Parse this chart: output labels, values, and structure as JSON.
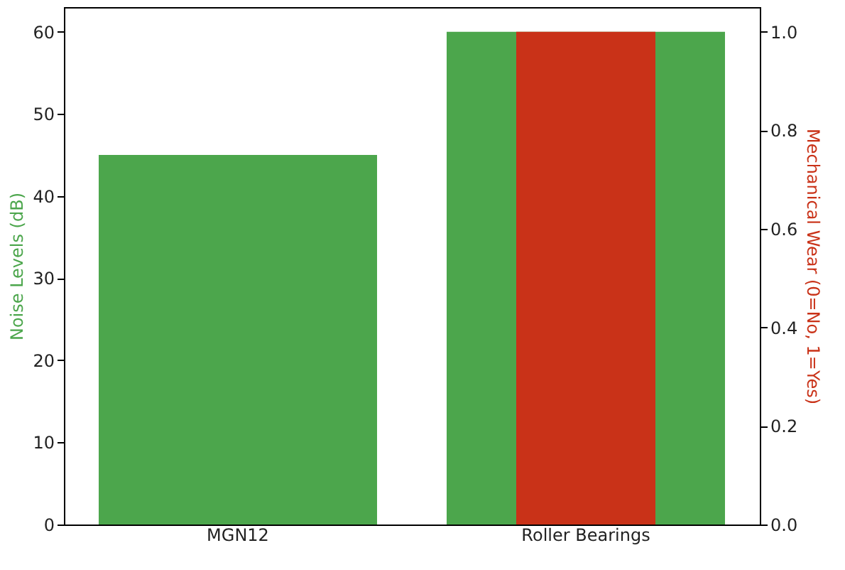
{
  "chart_data": {
    "type": "bar",
    "categories": [
      "MGN12",
      "Roller Bearings"
    ],
    "ylabel": "Noise Levels (dB)",
    "y2label": "Mechanical Wear (0=No, 1=Yes)",
    "series": [
      {
        "color": "#4ca64c",
        "values": [
          45,
          60
        ]
      },
      {
        "color": "#c93218",
        "values": [
          0,
          1
        ],
        "axis": "y2",
        "type": "bar"
      }
    ],
    "ylim": [
      0,
      63
    ],
    "yticks": [
      0,
      10,
      20,
      30,
      40,
      50,
      60
    ],
    "y2lim": [
      0,
      1.05
    ],
    "y2ticks": [
      {
        "value": 0,
        "label": "0.0"
      },
      {
        "value": 0.2,
        "label": "0.2"
      },
      {
        "value": 0.4,
        "label": "0.4"
      },
      {
        "value": 0.6,
        "label": "0.6"
      },
      {
        "value": 0.8,
        "label": "0.8"
      },
      {
        "value": 1.0,
        "label": "1.0"
      }
    ],
    "grid": false
  }
}
